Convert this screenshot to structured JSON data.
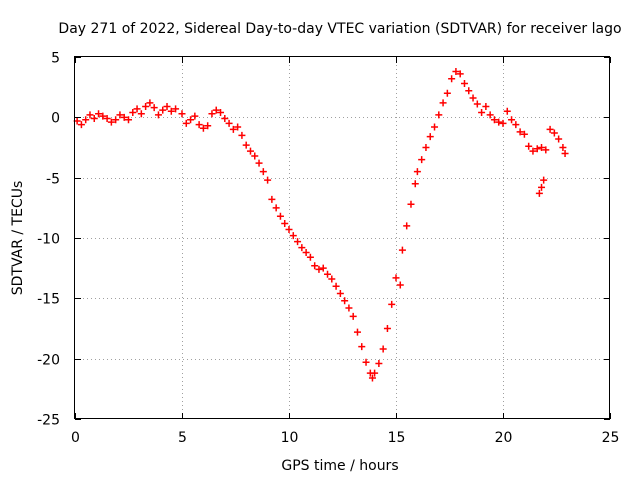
{
  "chart_data": {
    "type": "scatter",
    "title": "Day 271 of 2022, Sidereal Day-to-day VTEC variation (SDTVAR) for receiver lago",
    "xlabel": "GPS time / hours",
    "ylabel": "SDTVAR / TECUs",
    "xlim": [
      0,
      25
    ],
    "ylim": [
      -25,
      5
    ],
    "xticks": [
      "0",
      "5",
      "10",
      "15",
      "20",
      "25"
    ],
    "yticks": [
      "-25",
      "-20",
      "-15",
      "-10",
      "-5",
      "0",
      "5"
    ],
    "grid": true,
    "marker": "+",
    "color": "#ff0000",
    "series": [
      {
        "name": "SDTVAR",
        "points": [
          [
            0.1,
            -0.3
          ],
          [
            0.3,
            -0.6
          ],
          [
            0.5,
            -0.2
          ],
          [
            0.7,
            0.2
          ],
          [
            0.9,
            -0.1
          ],
          [
            1.1,
            0.3
          ],
          [
            1.3,
            0.1
          ],
          [
            1.5,
            -0.1
          ],
          [
            1.7,
            -0.4
          ],
          [
            1.9,
            -0.2
          ],
          [
            2.1,
            0.2
          ],
          [
            2.3,
            0.0
          ],
          [
            2.5,
            -0.2
          ],
          [
            2.7,
            0.4
          ],
          [
            2.9,
            0.7
          ],
          [
            3.1,
            0.3
          ],
          [
            3.3,
            0.9
          ],
          [
            3.5,
            1.2
          ],
          [
            3.7,
            0.8
          ],
          [
            3.9,
            0.2
          ],
          [
            4.1,
            0.6
          ],
          [
            4.3,
            0.9
          ],
          [
            4.5,
            0.5
          ],
          [
            4.7,
            0.7
          ],
          [
            5.0,
            0.3
          ],
          [
            5.2,
            -0.5
          ],
          [
            5.4,
            -0.2
          ],
          [
            5.6,
            0.1
          ],
          [
            5.8,
            -0.6
          ],
          [
            6.0,
            -0.9
          ],
          [
            6.2,
            -0.7
          ],
          [
            6.4,
            0.3
          ],
          [
            6.6,
            0.6
          ],
          [
            6.8,
            0.4
          ],
          [
            7.0,
            -0.1
          ],
          [
            7.2,
            -0.5
          ],
          [
            7.4,
            -1.0
          ],
          [
            7.6,
            -0.8
          ],
          [
            7.8,
            -1.5
          ],
          [
            8.0,
            -2.3
          ],
          [
            8.2,
            -2.8
          ],
          [
            8.4,
            -3.2
          ],
          [
            8.6,
            -3.8
          ],
          [
            8.8,
            -4.5
          ],
          [
            9.0,
            -5.2
          ],
          [
            9.2,
            -6.8
          ],
          [
            9.4,
            -7.5
          ],
          [
            9.6,
            -8.2
          ],
          [
            9.8,
            -8.8
          ],
          [
            10.0,
            -9.3
          ],
          [
            10.2,
            -9.8
          ],
          [
            10.4,
            -10.3
          ],
          [
            10.6,
            -10.8
          ],
          [
            10.8,
            -11.2
          ],
          [
            11.0,
            -11.6
          ],
          [
            11.2,
            -12.3
          ],
          [
            11.4,
            -12.6
          ],
          [
            11.6,
            -12.5
          ],
          [
            11.8,
            -13.0
          ],
          [
            12.0,
            -13.4
          ],
          [
            12.2,
            -14.0
          ],
          [
            12.4,
            -14.6
          ],
          [
            12.6,
            -15.2
          ],
          [
            12.8,
            -15.8
          ],
          [
            13.0,
            -16.5
          ],
          [
            13.2,
            -17.8
          ],
          [
            13.4,
            -19.0
          ],
          [
            13.6,
            -20.3
          ],
          [
            13.8,
            -21.2
          ],
          [
            13.9,
            -21.6
          ],
          [
            14.0,
            -21.2
          ],
          [
            14.2,
            -20.4
          ],
          [
            14.4,
            -19.2
          ],
          [
            14.6,
            -17.5
          ],
          [
            14.8,
            -15.5
          ],
          [
            15.0,
            -13.3
          ],
          [
            15.2,
            -13.9
          ],
          [
            15.3,
            -11.0
          ],
          [
            15.5,
            -9.0
          ],
          [
            15.7,
            -7.2
          ],
          [
            15.9,
            -5.5
          ],
          [
            16.0,
            -4.5
          ],
          [
            16.2,
            -3.5
          ],
          [
            16.4,
            -2.5
          ],
          [
            16.6,
            -1.6
          ],
          [
            16.8,
            -0.8
          ],
          [
            17.0,
            0.2
          ],
          [
            17.2,
            1.2
          ],
          [
            17.4,
            2.0
          ],
          [
            17.6,
            3.2
          ],
          [
            17.8,
            3.8
          ],
          [
            18.0,
            3.6
          ],
          [
            18.2,
            2.8
          ],
          [
            18.4,
            2.2
          ],
          [
            18.6,
            1.6
          ],
          [
            18.8,
            1.1
          ],
          [
            19.0,
            0.4
          ],
          [
            19.2,
            0.9
          ],
          [
            19.4,
            0.2
          ],
          [
            19.6,
            -0.2
          ],
          [
            19.8,
            -0.4
          ],
          [
            20.0,
            -0.5
          ],
          [
            20.2,
            0.5
          ],
          [
            20.4,
            -0.2
          ],
          [
            20.6,
            -0.6
          ],
          [
            20.8,
            -1.2
          ],
          [
            21.0,
            -1.4
          ],
          [
            21.2,
            -2.4
          ],
          [
            21.4,
            -2.8
          ],
          [
            21.6,
            -2.6
          ],
          [
            21.8,
            -2.5
          ],
          [
            22.0,
            -2.7
          ],
          [
            21.7,
            -6.3
          ],
          [
            21.8,
            -5.8
          ],
          [
            21.9,
            -5.2
          ],
          [
            22.2,
            -1.0
          ],
          [
            22.4,
            -1.3
          ],
          [
            22.6,
            -1.8
          ],
          [
            22.8,
            -2.5
          ],
          [
            22.9,
            -3.0
          ]
        ]
      }
    ]
  }
}
